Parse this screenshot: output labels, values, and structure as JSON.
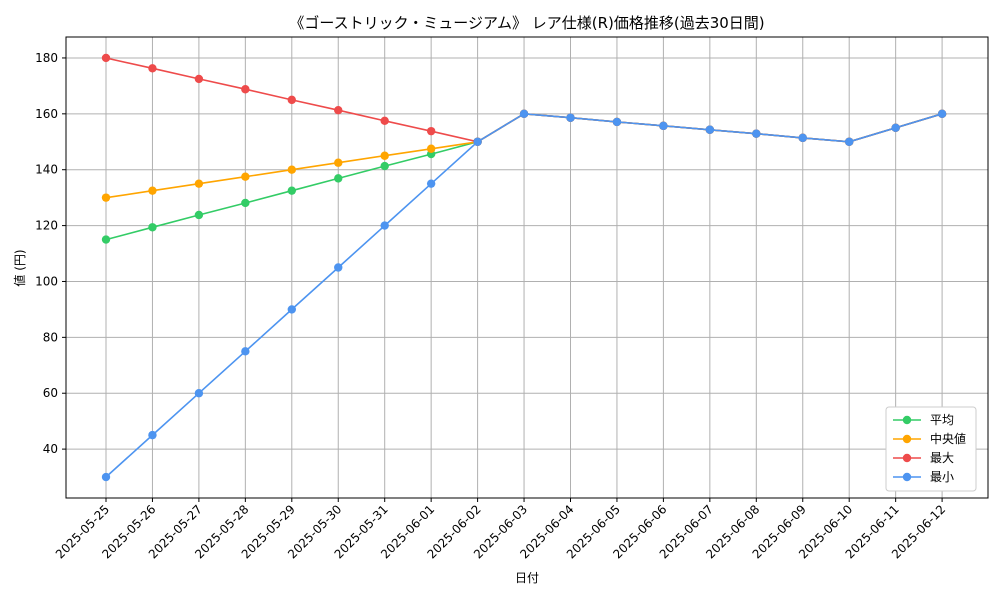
{
  "chart_data": {
    "type": "line",
    "title": "《ゴーストリック・ミュージアム》 レア仕様(R)価格推移(過去30日間)",
    "xlabel": "日付",
    "ylabel": "値 (円)",
    "categories": [
      "2025-05-25",
      "2025-05-26",
      "2025-05-27",
      "2025-05-28",
      "2025-05-29",
      "2025-05-30",
      "2025-05-31",
      "2025-06-01",
      "2025-06-02",
      "2025-06-03",
      "2025-06-04",
      "2025-06-05",
      "2025-06-06",
      "2025-06-07",
      "2025-06-08",
      "2025-06-09",
      "2025-06-10",
      "2025-06-11",
      "2025-06-12"
    ],
    "ylim": [
      22.5,
      187.5
    ],
    "yticks": [
      40,
      60,
      80,
      100,
      120,
      140,
      160,
      180
    ],
    "grid": true,
    "legend_position": "lower-right",
    "series": [
      {
        "name": "平均",
        "color": "#33cc66",
        "values": [
          115,
          119.4,
          123.8,
          128.1,
          132.5,
          136.9,
          141.3,
          145.6,
          150,
          160,
          158.6,
          157.1,
          155.7,
          154.3,
          152.9,
          151.4,
          150,
          155,
          160
        ]
      },
      {
        "name": " 中央値",
        "color": "#ffa500",
        "values": [
          130,
          132.5,
          135,
          137.5,
          140,
          142.5,
          145,
          147.5,
          150,
          160,
          158.6,
          157.1,
          155.7,
          154.3,
          152.9,
          151.4,
          150,
          155,
          160
        ]
      },
      {
        "name": "最大",
        "color": "#ee4b4b",
        "values": [
          180,
          176.3,
          172.5,
          168.8,
          165,
          161.3,
          157.5,
          153.8,
          150,
          160,
          158.6,
          157.1,
          155.7,
          154.3,
          152.9,
          151.4,
          150,
          155,
          160
        ]
      },
      {
        "name": "最小",
        "color": "#4d94f0",
        "values": [
          30,
          45,
          60,
          75,
          90,
          105,
          120,
          135,
          150,
          160,
          158.6,
          157.1,
          155.7,
          154.3,
          152.9,
          151.4,
          150,
          155,
          160
        ]
      }
    ]
  }
}
